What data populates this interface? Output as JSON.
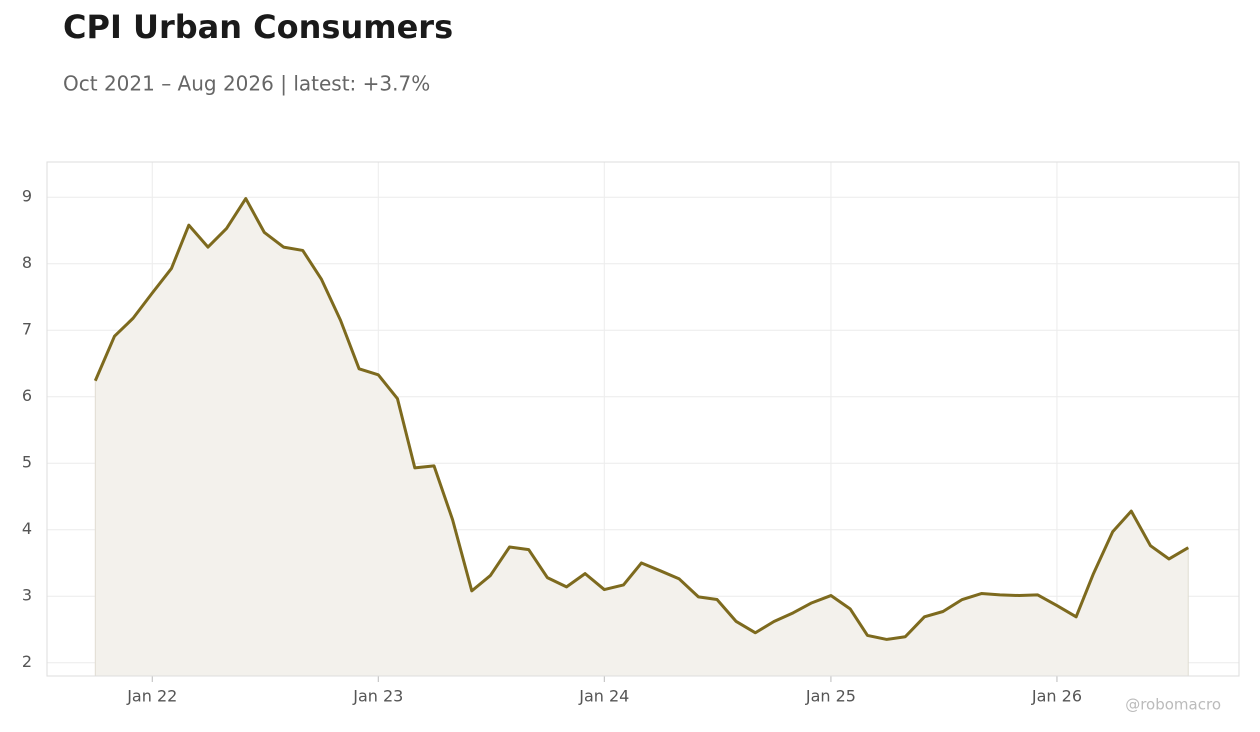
{
  "chart_data": {
    "type": "line",
    "title": "CPI Urban Consumers",
    "subtitle": "Oct 2021 – Aug 2026 | latest: +3.7%",
    "watermark": "@robomacro",
    "series": [
      {
        "name": "CPI Urban Consumers",
        "color": "#7d6a1e",
        "fill": "#f3f1ec",
        "values": [
          6.24,
          6.91,
          7.18,
          7.56,
          7.93,
          8.58,
          8.25,
          8.53,
          8.98,
          8.47,
          8.25,
          8.2,
          7.77,
          7.15,
          6.42,
          6.33,
          5.97,
          4.93,
          4.96,
          4.15,
          3.08,
          3.31,
          3.74,
          3.7,
          3.28,
          3.14,
          3.34,
          3.1,
          3.17,
          3.5,
          3.38,
          3.26,
          2.99,
          2.95,
          2.62,
          2.45,
          2.62,
          2.75,
          2.9,
          3.01,
          2.81,
          2.41,
          2.35,
          2.39,
          2.69,
          2.77,
          2.95,
          3.04,
          3.02,
          3.01,
          3.02,
          2.86,
          2.69,
          3.34,
          3.97,
          4.28,
          3.76,
          3.56,
          3.73
        ]
      }
    ],
    "x": [
      "2021-10",
      "2021-11",
      "2021-12",
      "2022-01",
      "2022-02",
      "2022-03",
      "2022-04",
      "2022-05",
      "2022-06",
      "2022-07",
      "2022-08",
      "2022-09",
      "2022-10",
      "2022-11",
      "2022-12",
      "2023-01",
      "2023-02",
      "2023-03",
      "2023-04",
      "2023-05",
      "2023-06",
      "2023-07",
      "2023-08",
      "2023-09",
      "2023-10",
      "2023-11",
      "2023-12",
      "2024-01",
      "2024-02",
      "2024-03",
      "2024-04",
      "2024-05",
      "2024-06",
      "2024-07",
      "2024-08",
      "2024-09",
      "2024-10",
      "2024-11",
      "2024-12",
      "2025-01",
      "2025-02",
      "2025-03",
      "2025-04",
      "2025-05",
      "2025-06",
      "2025-07",
      "2025-08",
      "2025-09",
      "2025-10",
      "2025-11",
      "2025-12",
      "2026-01",
      "2026-02",
      "2026-03",
      "2026-04",
      "2026-05",
      "2026-06",
      "2026-07",
      "2026-08"
    ],
    "xlim": [
      "2021-07-15",
      "2026-10-22"
    ],
    "xticks": [
      {
        "value": "2022-01",
        "label": "Jan 22"
      },
      {
        "value": "2023-01",
        "label": "Jan 23"
      },
      {
        "value": "2024-01",
        "label": "Jan 24"
      },
      {
        "value": "2025-01",
        "label": "Jan 25"
      },
      {
        "value": "2026-01",
        "label": "Jan 26"
      }
    ],
    "ylim": [
      1.8,
      9.53
    ],
    "yticks": [
      2,
      3,
      4,
      5,
      6,
      7,
      8,
      9
    ],
    "grid": true
  }
}
